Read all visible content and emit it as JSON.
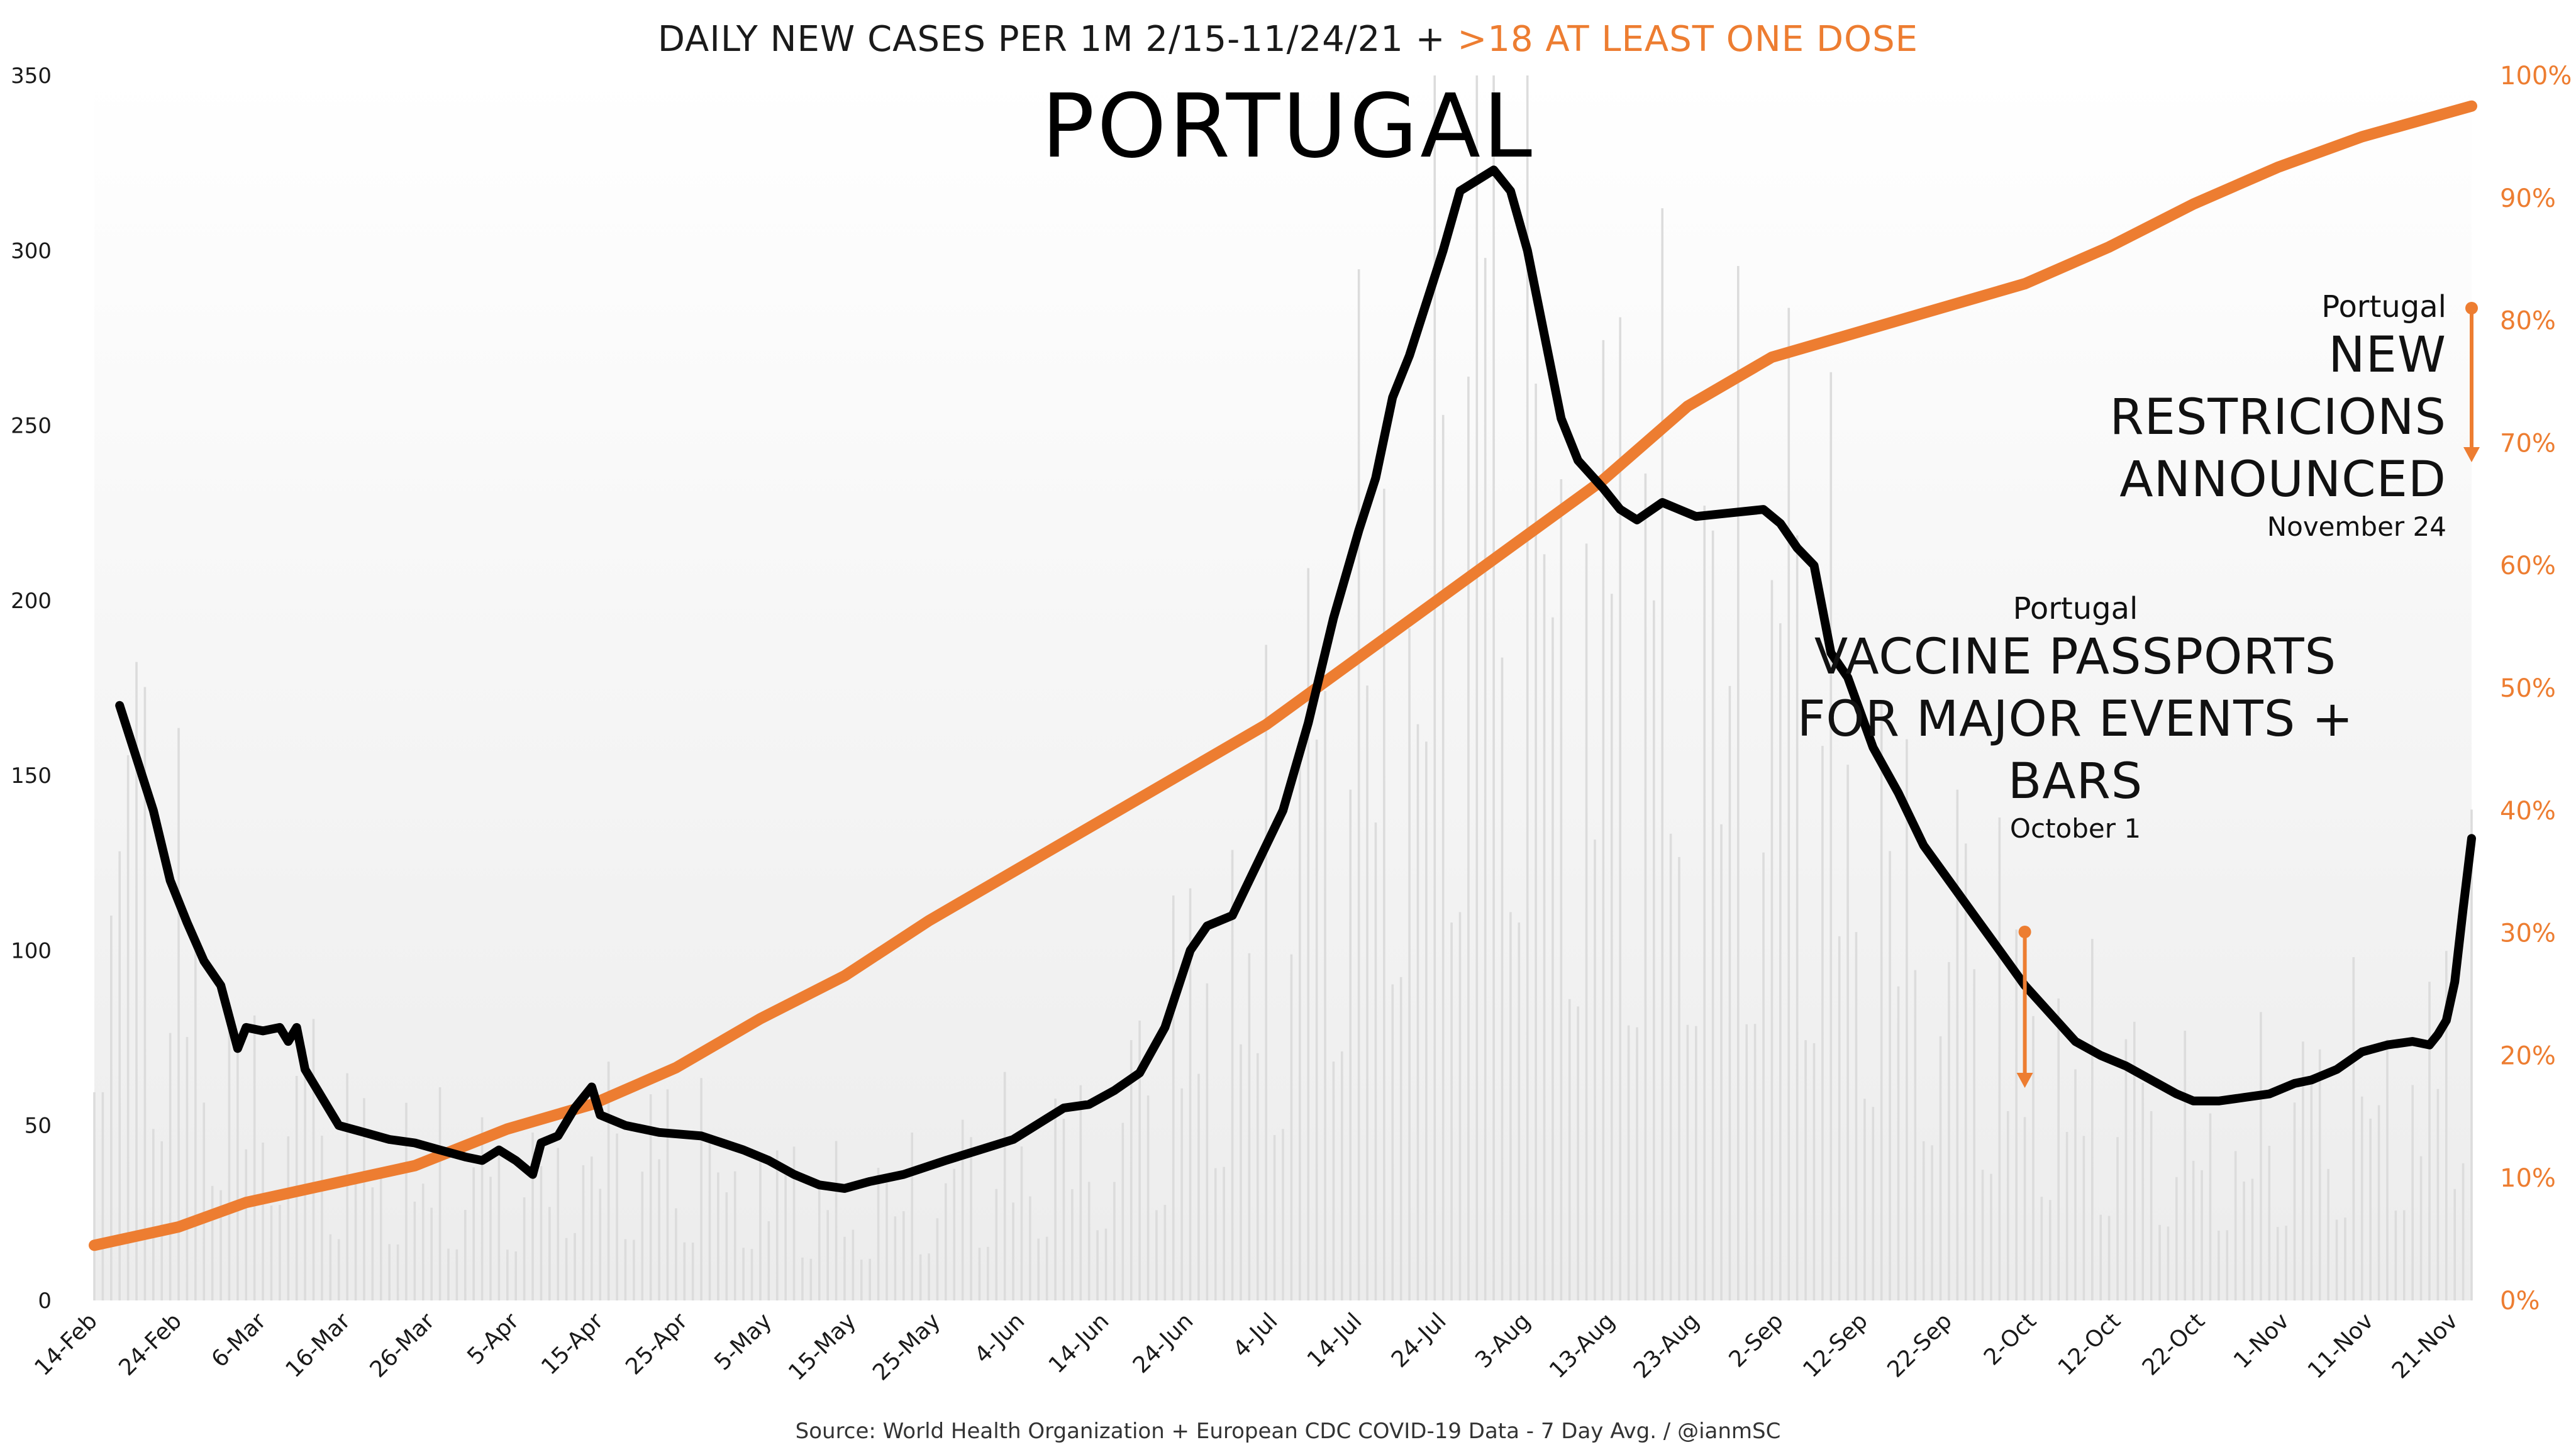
{
  "header": {
    "subtitle_black": "DAILY NEW CASES PER 1M 2/15-11/24/21 +",
    "subtitle_orange": ">18 AT LEAST ONE DOSE",
    "title": "PORTUGAL",
    "source": "Source: World Health Organization + European CDC COVID-19 Data - 7 Day Avg. / @ianmSC"
  },
  "annotations": {
    "vaccine_passports": {
      "country": "Portugal",
      "text": "VACCINE PASSPORTS FOR MAJOR EVENTS + BARS",
      "date": "October 1",
      "x_date_index": 229
    },
    "new_restrictions": {
      "country": "Portugal",
      "text": "NEW RESTRICIONS ANNOUNCED",
      "date": "November 24",
      "x_date_index": 282
    }
  },
  "colors": {
    "cases_line": "#000000",
    "vaccine_line": "#ed7d31",
    "daily_bars": "#e0e0e0",
    "left_axis_text": "#1a1a1a",
    "right_axis_text": "#ed7d31"
  },
  "chart_data": {
    "type": "line",
    "x_start": "2021-02-15",
    "x_end": "2021-11-24",
    "x_tick_labels": [
      "14-Feb",
      "24-Feb",
      "6-Mar",
      "16-Mar",
      "26-Mar",
      "5-Apr",
      "15-Apr",
      "25-Apr",
      "5-May",
      "15-May",
      "25-May",
      "4-Jun",
      "14-Jun",
      "24-Jun",
      "4-Jul",
      "14-Jul",
      "24-Jul",
      "3-Aug",
      "13-Aug",
      "23-Aug",
      "2-Sep",
      "12-Sep",
      "22-Sep",
      "2-Oct",
      "12-Oct",
      "22-Oct",
      "1-Nov",
      "11-Nov",
      "21-Nov"
    ],
    "y_left": {
      "label": "",
      "min": 0,
      "max": 350,
      "ticks": [
        0,
        50,
        100,
        150,
        200,
        250,
        300,
        350
      ]
    },
    "y_right": {
      "label": "",
      "min": 0,
      "max": 100,
      "ticks": [
        "0%",
        "10%",
        "20%",
        "30%",
        "40%",
        "50%",
        "60%",
        "70%",
        "80%",
        "90%",
        "100%"
      ]
    },
    "grid": false,
    "legend": "none",
    "series": [
      {
        "type": "line",
        "axis": "left",
        "points": [
          [
            "2021-02-18",
            170
          ],
          [
            "2021-02-20",
            155
          ],
          [
            "2021-02-22",
            140
          ],
          [
            "2021-02-24",
            120
          ],
          [
            "2021-02-26",
            108
          ],
          [
            "2021-02-28",
            97
          ],
          [
            "2021-03-02",
            90
          ],
          [
            "2021-03-04",
            72
          ],
          [
            "2021-03-05",
            78
          ],
          [
            "2021-03-07",
            77
          ],
          [
            "2021-03-09",
            78
          ],
          [
            "2021-03-10",
            74
          ],
          [
            "2021-03-11",
            78
          ],
          [
            "2021-03-12",
            66
          ],
          [
            "2021-03-14",
            58
          ],
          [
            "2021-03-16",
            50
          ],
          [
            "2021-03-19",
            48
          ],
          [
            "2021-03-22",
            46
          ],
          [
            "2021-03-25",
            45
          ],
          [
            "2021-03-28",
            43
          ],
          [
            "2021-03-31",
            41
          ],
          [
            "2021-04-02",
            40
          ],
          [
            "2021-04-04",
            43
          ],
          [
            "2021-04-06",
            40
          ],
          [
            "2021-04-08",
            36
          ],
          [
            "2021-04-09",
            45
          ],
          [
            "2021-04-11",
            47
          ],
          [
            "2021-04-13",
            55
          ],
          [
            "2021-04-15",
            61
          ],
          [
            "2021-04-16",
            53
          ],
          [
            "2021-04-19",
            50
          ],
          [
            "2021-04-23",
            48
          ],
          [
            "2021-04-28",
            47
          ],
          [
            "2021-05-03",
            43
          ],
          [
            "2021-05-06",
            40
          ],
          [
            "2021-05-09",
            36
          ],
          [
            "2021-05-12",
            33
          ],
          [
            "2021-05-15",
            32
          ],
          [
            "2021-05-18",
            34
          ],
          [
            "2021-05-22",
            36
          ],
          [
            "2021-05-27",
            40
          ],
          [
            "2021-05-31",
            43
          ],
          [
            "2021-06-04",
            46
          ],
          [
            "2021-06-08",
            52
          ],
          [
            "2021-06-10",
            55
          ],
          [
            "2021-06-13",
            56
          ],
          [
            "2021-06-16",
            60
          ],
          [
            "2021-06-19",
            65
          ],
          [
            "2021-06-22",
            78
          ],
          [
            "2021-06-25",
            100
          ],
          [
            "2021-06-27",
            107
          ],
          [
            "2021-06-30",
            110
          ],
          [
            "2021-07-03",
            125
          ],
          [
            "2021-07-06",
            140
          ],
          [
            "2021-07-09",
            165
          ],
          [
            "2021-07-12",
            195
          ],
          [
            "2021-07-15",
            220
          ],
          [
            "2021-07-17",
            235
          ],
          [
            "2021-07-19",
            258
          ],
          [
            "2021-07-21",
            270
          ],
          [
            "2021-07-23",
            285
          ],
          [
            "2021-07-25",
            300
          ],
          [
            "2021-07-27",
            317
          ],
          [
            "2021-07-29",
            320
          ],
          [
            "2021-07-31",
            323
          ],
          [
            "2021-08-02",
            317
          ],
          [
            "2021-08-04",
            300
          ],
          [
            "2021-08-06",
            276
          ],
          [
            "2021-08-08",
            252
          ],
          [
            "2021-08-10",
            240
          ],
          [
            "2021-08-13",
            232
          ],
          [
            "2021-08-15",
            226
          ],
          [
            "2021-08-17",
            223
          ],
          [
            "2021-08-20",
            228
          ],
          [
            "2021-08-24",
            224
          ],
          [
            "2021-08-28",
            225
          ],
          [
            "2021-09-01",
            226
          ],
          [
            "2021-09-03",
            222
          ],
          [
            "2021-09-05",
            215
          ],
          [
            "2021-09-07",
            210
          ],
          [
            "2021-09-09",
            185
          ],
          [
            "2021-09-11",
            178
          ],
          [
            "2021-09-14",
            158
          ],
          [
            "2021-09-17",
            145
          ],
          [
            "2021-09-20",
            130
          ],
          [
            "2021-09-23",
            120
          ],
          [
            "2021-09-26",
            110
          ],
          [
            "2021-09-29",
            100
          ],
          [
            "2021-10-02",
            90
          ],
          [
            "2021-10-05",
            82
          ],
          [
            "2021-10-08",
            74
          ],
          [
            "2021-10-11",
            70
          ],
          [
            "2021-10-14",
            67
          ],
          [
            "2021-10-17",
            63
          ],
          [
            "2021-10-20",
            59
          ],
          [
            "2021-10-22",
            57
          ],
          [
            "2021-10-25",
            57
          ],
          [
            "2021-10-28",
            58
          ],
          [
            "2021-10-31",
            59
          ],
          [
            "2021-11-03",
            62
          ],
          [
            "2021-11-05",
            63
          ],
          [
            "2021-11-08",
            66
          ],
          [
            "2021-11-11",
            71
          ],
          [
            "2021-11-14",
            73
          ],
          [
            "2021-11-17",
            74
          ],
          [
            "2021-11-19",
            73
          ],
          [
            "2021-11-20",
            76
          ],
          [
            "2021-11-21",
            80
          ],
          [
            "2021-11-22",
            91
          ],
          [
            "2021-11-23",
            112
          ],
          [
            "2021-11-24",
            132
          ]
        ]
      },
      {
        "type": "line",
        "axis": "right",
        "points": [
          [
            "2021-02-15",
            4.5
          ],
          [
            "2021-02-25",
            6
          ],
          [
            "2021-03-05",
            8
          ],
          [
            "2021-03-15",
            9.5
          ],
          [
            "2021-03-25",
            11
          ],
          [
            "2021-04-05",
            14
          ],
          [
            "2021-04-15",
            16
          ],
          [
            "2021-04-25",
            19
          ],
          [
            "2021-05-05",
            23
          ],
          [
            "2021-05-15",
            26.5
          ],
          [
            "2021-05-25",
            31
          ],
          [
            "2021-06-04",
            35
          ],
          [
            "2021-06-14",
            39
          ],
          [
            "2021-06-24",
            43
          ],
          [
            "2021-07-04",
            47
          ],
          [
            "2021-07-14",
            52
          ],
          [
            "2021-07-24",
            57
          ],
          [
            "2021-08-03",
            62
          ],
          [
            "2021-08-13",
            67
          ],
          [
            "2021-08-23",
            73
          ],
          [
            "2021-09-02",
            77
          ],
          [
            "2021-09-12",
            79
          ],
          [
            "2021-09-22",
            81
          ],
          [
            "2021-10-02",
            83
          ],
          [
            "2021-10-12",
            86
          ],
          [
            "2021-10-22",
            89.5
          ],
          [
            "2021-11-01",
            92.5
          ],
          [
            "2021-11-11",
            95
          ],
          [
            "2021-11-24",
            97.5
          ]
        ]
      }
    ],
    "daily_bars": {
      "type": "bar",
      "axis": "left",
      "note": "faint daily raw values behind the 7-day average"
    }
  }
}
